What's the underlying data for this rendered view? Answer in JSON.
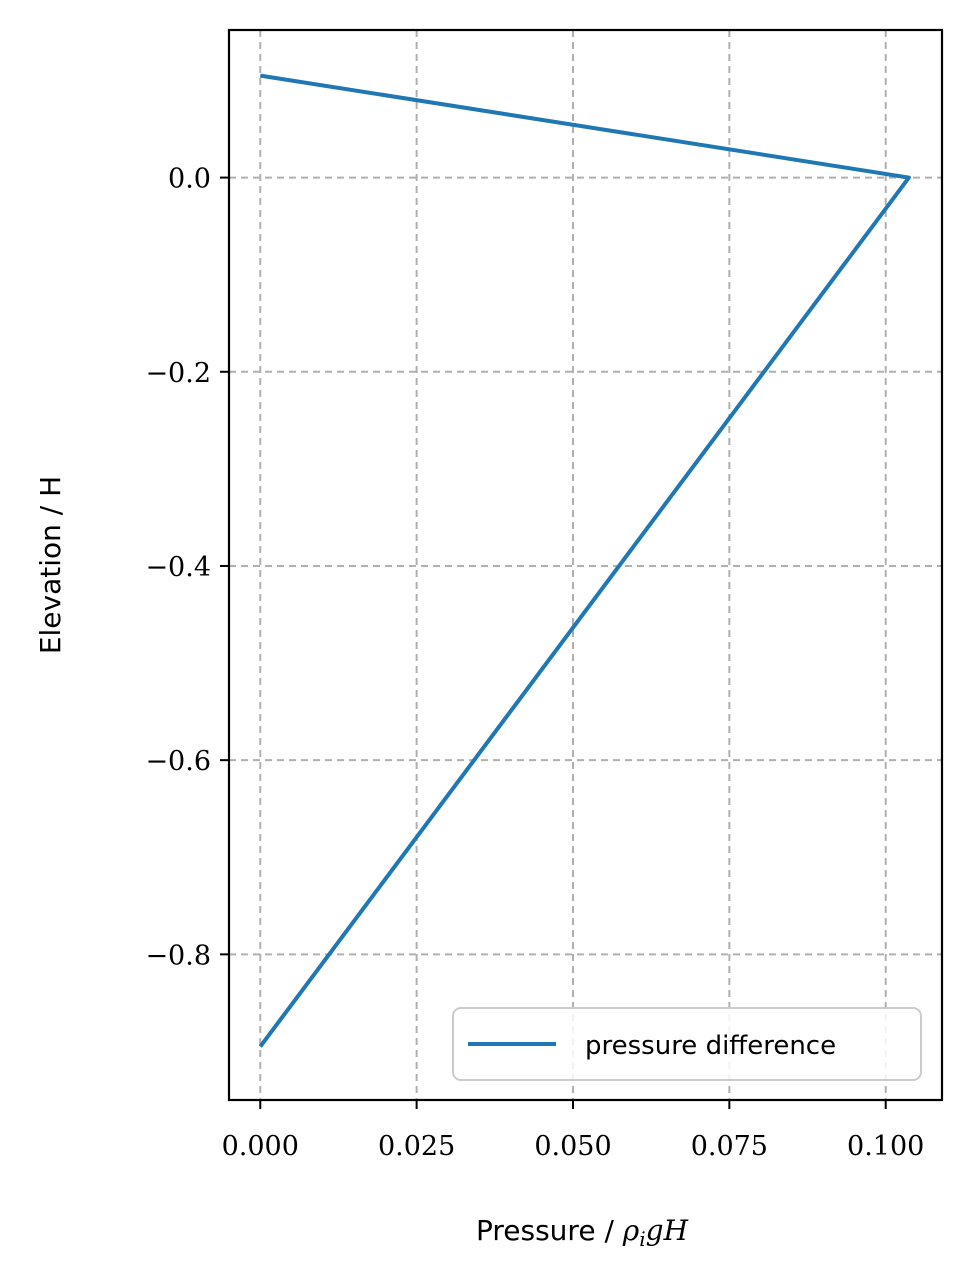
{
  "chart_data": {
    "type": "line",
    "title": "",
    "xlabel": {
      "prefix": "Pressure / ",
      "rho": "ρ",
      "rho_sub": "i",
      "rest": "gH"
    },
    "ylabel": "Elevation / H",
    "xlim": [
      -0.005,
      0.109
    ],
    "ylim": [
      -0.95,
      0.152
    ],
    "xticks": [
      0.0,
      0.025,
      0.05,
      0.075,
      0.1
    ],
    "xtick_labels": [
      "0.000",
      "0.025",
      "0.050",
      "0.075",
      "0.100"
    ],
    "yticks": [
      0.0,
      -0.2,
      -0.4,
      -0.6,
      -0.8
    ],
    "ytick_labels": [
      "0.0",
      "−0.2",
      "−0.4",
      "−0.6",
      "−0.8"
    ],
    "grid": true,
    "legend_position": "lower-right",
    "series": [
      {
        "name": "pressure difference",
        "color": "#1f77b4",
        "x": [
          0.0,
          0.1037,
          0.0
        ],
        "y": [
          0.105,
          0.0,
          -0.895
        ]
      }
    ]
  }
}
